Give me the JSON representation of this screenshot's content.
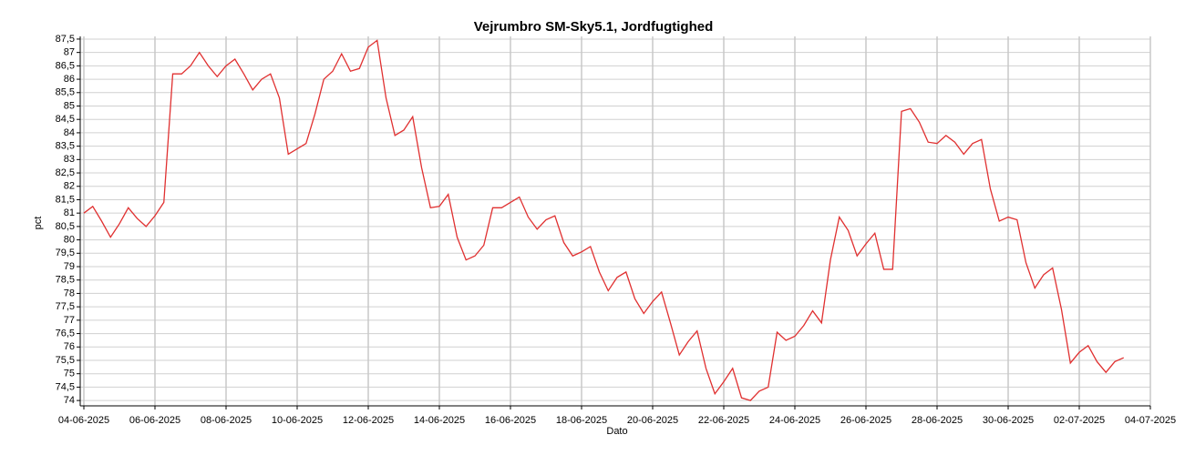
{
  "chart_data": {
    "type": "line",
    "title": "Vejrumbro SM-Sky5.1, Jordfugtighed",
    "x_label": "Dato",
    "y_label": "pct",
    "color": "#e03030",
    "grid": true,
    "x": [
      "2025-06-04T00:00",
      "2025-06-04T06:00",
      "2025-06-04T12:00",
      "2025-06-04T18:00",
      "2025-06-05T00:00",
      "2025-06-05T06:00",
      "2025-06-05T12:00",
      "2025-06-05T18:00",
      "2025-06-06T00:00",
      "2025-06-06T06:00",
      "2025-06-06T12:00",
      "2025-06-06T18:00",
      "2025-06-07T00:00",
      "2025-06-07T06:00",
      "2025-06-07T12:00",
      "2025-06-07T18:00",
      "2025-06-08T00:00",
      "2025-06-08T06:00",
      "2025-06-08T12:00",
      "2025-06-08T18:00",
      "2025-06-09T00:00",
      "2025-06-09T06:00",
      "2025-06-09T12:00",
      "2025-06-09T18:00",
      "2025-06-10T00:00",
      "2025-06-10T06:00",
      "2025-06-10T12:00",
      "2025-06-10T18:00",
      "2025-06-11T00:00",
      "2025-06-11T06:00",
      "2025-06-11T12:00",
      "2025-06-11T18:00",
      "2025-06-12T00:00",
      "2025-06-12T06:00",
      "2025-06-12T12:00",
      "2025-06-12T18:00",
      "2025-06-13T00:00",
      "2025-06-13T06:00",
      "2025-06-13T12:00",
      "2025-06-13T18:00",
      "2025-06-14T00:00",
      "2025-06-14T06:00",
      "2025-06-14T12:00",
      "2025-06-14T18:00",
      "2025-06-15T00:00",
      "2025-06-15T06:00",
      "2025-06-15T12:00",
      "2025-06-15T18:00",
      "2025-06-16T00:00",
      "2025-06-16T06:00",
      "2025-06-16T12:00",
      "2025-06-16T18:00",
      "2025-06-17T00:00",
      "2025-06-17T06:00",
      "2025-06-17T12:00",
      "2025-06-17T18:00",
      "2025-06-18T00:00",
      "2025-06-18T06:00",
      "2025-06-18T12:00",
      "2025-06-18T18:00",
      "2025-06-19T00:00",
      "2025-06-19T06:00",
      "2025-06-19T12:00",
      "2025-06-19T18:00",
      "2025-06-20T00:00",
      "2025-06-20T06:00",
      "2025-06-20T12:00",
      "2025-06-20T18:00",
      "2025-06-21T00:00",
      "2025-06-21T06:00",
      "2025-06-21T12:00",
      "2025-06-21T18:00",
      "2025-06-22T00:00",
      "2025-06-22T06:00",
      "2025-06-22T12:00",
      "2025-06-22T18:00",
      "2025-06-23T00:00",
      "2025-06-23T06:00",
      "2025-06-23T12:00",
      "2025-06-23T18:00",
      "2025-06-24T00:00",
      "2025-06-24T06:00",
      "2025-06-24T12:00",
      "2025-06-24T18:00",
      "2025-06-25T00:00",
      "2025-06-25T06:00",
      "2025-06-25T12:00",
      "2025-06-25T18:00",
      "2025-06-26T00:00",
      "2025-06-26T06:00",
      "2025-06-26T12:00",
      "2025-06-26T18:00",
      "2025-06-27T00:00",
      "2025-06-27T06:00",
      "2025-06-27T12:00",
      "2025-06-27T18:00",
      "2025-06-28T00:00",
      "2025-06-28T06:00",
      "2025-06-28T12:00",
      "2025-06-28T18:00",
      "2025-06-29T00:00",
      "2025-06-29T06:00",
      "2025-06-29T12:00",
      "2025-06-29T18:00",
      "2025-06-30T00:00",
      "2025-06-30T06:00",
      "2025-06-30T12:00",
      "2025-06-30T18:00",
      "2025-07-01T00:00",
      "2025-07-01T06:00",
      "2025-07-01T12:00",
      "2025-07-01T18:00",
      "2025-07-02T00:00",
      "2025-07-02T06:00",
      "2025-07-02T12:00",
      "2025-07-02T18:00",
      "2025-07-03T00:00",
      "2025-07-03T06:00"
    ],
    "values": [
      81.0,
      81.25,
      80.7,
      80.1,
      80.6,
      81.2,
      80.8,
      80.5,
      80.9,
      81.4,
      86.2,
      86.2,
      86.5,
      87.0,
      86.5,
      86.1,
      86.5,
      86.75,
      86.2,
      85.6,
      86.0,
      86.2,
      85.3,
      83.2,
      83.4,
      83.6,
      84.7,
      86.0,
      86.3,
      86.95,
      86.3,
      86.4,
      87.2,
      87.45,
      85.3,
      83.9,
      84.1,
      84.6,
      82.7,
      81.2,
      81.25,
      81.7,
      80.1,
      79.25,
      79.4,
      79.8,
      81.2,
      81.2,
      81.4,
      81.6,
      80.85,
      80.4,
      80.75,
      80.9,
      79.9,
      79.4,
      79.55,
      79.75,
      78.8,
      78.1,
      78.6,
      78.8,
      77.8,
      77.25,
      77.7,
      78.05,
      76.9,
      75.7,
      76.2,
      76.6,
      75.2,
      74.25,
      74.7,
      75.2,
      74.1,
      74.0,
      74.35,
      74.5,
      76.55,
      76.25,
      76.4,
      76.8,
      77.35,
      76.9,
      79.25,
      80.85,
      80.35,
      79.4,
      79.85,
      80.25,
      78.9,
      78.9,
      84.8,
      84.9,
      84.4,
      83.65,
      83.6,
      83.9,
      83.65,
      83.2,
      83.6,
      83.75,
      81.9,
      80.7,
      80.85,
      80.75,
      79.15,
      78.2,
      78.7,
      78.95,
      77.4,
      75.4,
      75.8,
      76.05,
      75.45,
      75.05,
      75.45,
      75.6
    ],
    "xlim": [
      "2025-06-04",
      "2025-07-04"
    ],
    "xticks": [
      {
        "value": "2025-06-04",
        "label": "04-06-2025"
      },
      {
        "value": "2025-06-06",
        "label": "06-06-2025"
      },
      {
        "value": "2025-06-08",
        "label": "08-06-2025"
      },
      {
        "value": "2025-06-10",
        "label": "10-06-2025"
      },
      {
        "value": "2025-06-12",
        "label": "12-06-2025"
      },
      {
        "value": "2025-06-14",
        "label": "14-06-2025"
      },
      {
        "value": "2025-06-16",
        "label": "16-06-2025"
      },
      {
        "value": "2025-06-18",
        "label": "18-06-2025"
      },
      {
        "value": "2025-06-20",
        "label": "20-06-2025"
      },
      {
        "value": "2025-06-22",
        "label": "22-06-2025"
      },
      {
        "value": "2025-06-24",
        "label": "24-06-2025"
      },
      {
        "value": "2025-06-26",
        "label": "26-06-2025"
      },
      {
        "value": "2025-06-28",
        "label": "28-06-2025"
      },
      {
        "value": "2025-06-30",
        "label": "30-06-2025"
      },
      {
        "value": "2025-07-02",
        "label": "02-07-2025"
      },
      {
        "value": "2025-07-04",
        "label": "04-07-2025"
      }
    ],
    "ylim": [
      73.8,
      87.6
    ],
    "yticks": [
      74,
      {
        "value": 74.5,
        "label": "74,5"
      },
      75,
      {
        "value": 75.5,
        "label": "75,5"
      },
      76,
      {
        "value": 76.5,
        "label": "76,5"
      },
      77,
      {
        "value": 77.5,
        "label": "77,5"
      },
      78,
      {
        "value": 78.5,
        "label": "78,5"
      },
      79,
      {
        "value": 79.5,
        "label": "79,5"
      },
      80,
      {
        "value": 80.5,
        "label": "80,5"
      },
      81,
      {
        "value": 81.5,
        "label": "81,5"
      },
      82,
      {
        "value": 82.5,
        "label": "82,5"
      },
      83,
      {
        "value": 83.5,
        "label": "83,5"
      },
      84,
      {
        "value": 84.5,
        "label": "84,5"
      },
      85,
      {
        "value": 85.5,
        "label": "85,5"
      },
      86,
      {
        "value": 86.5,
        "label": "86,5"
      },
      87,
      {
        "value": 87.5,
        "label": "87,5"
      }
    ]
  }
}
